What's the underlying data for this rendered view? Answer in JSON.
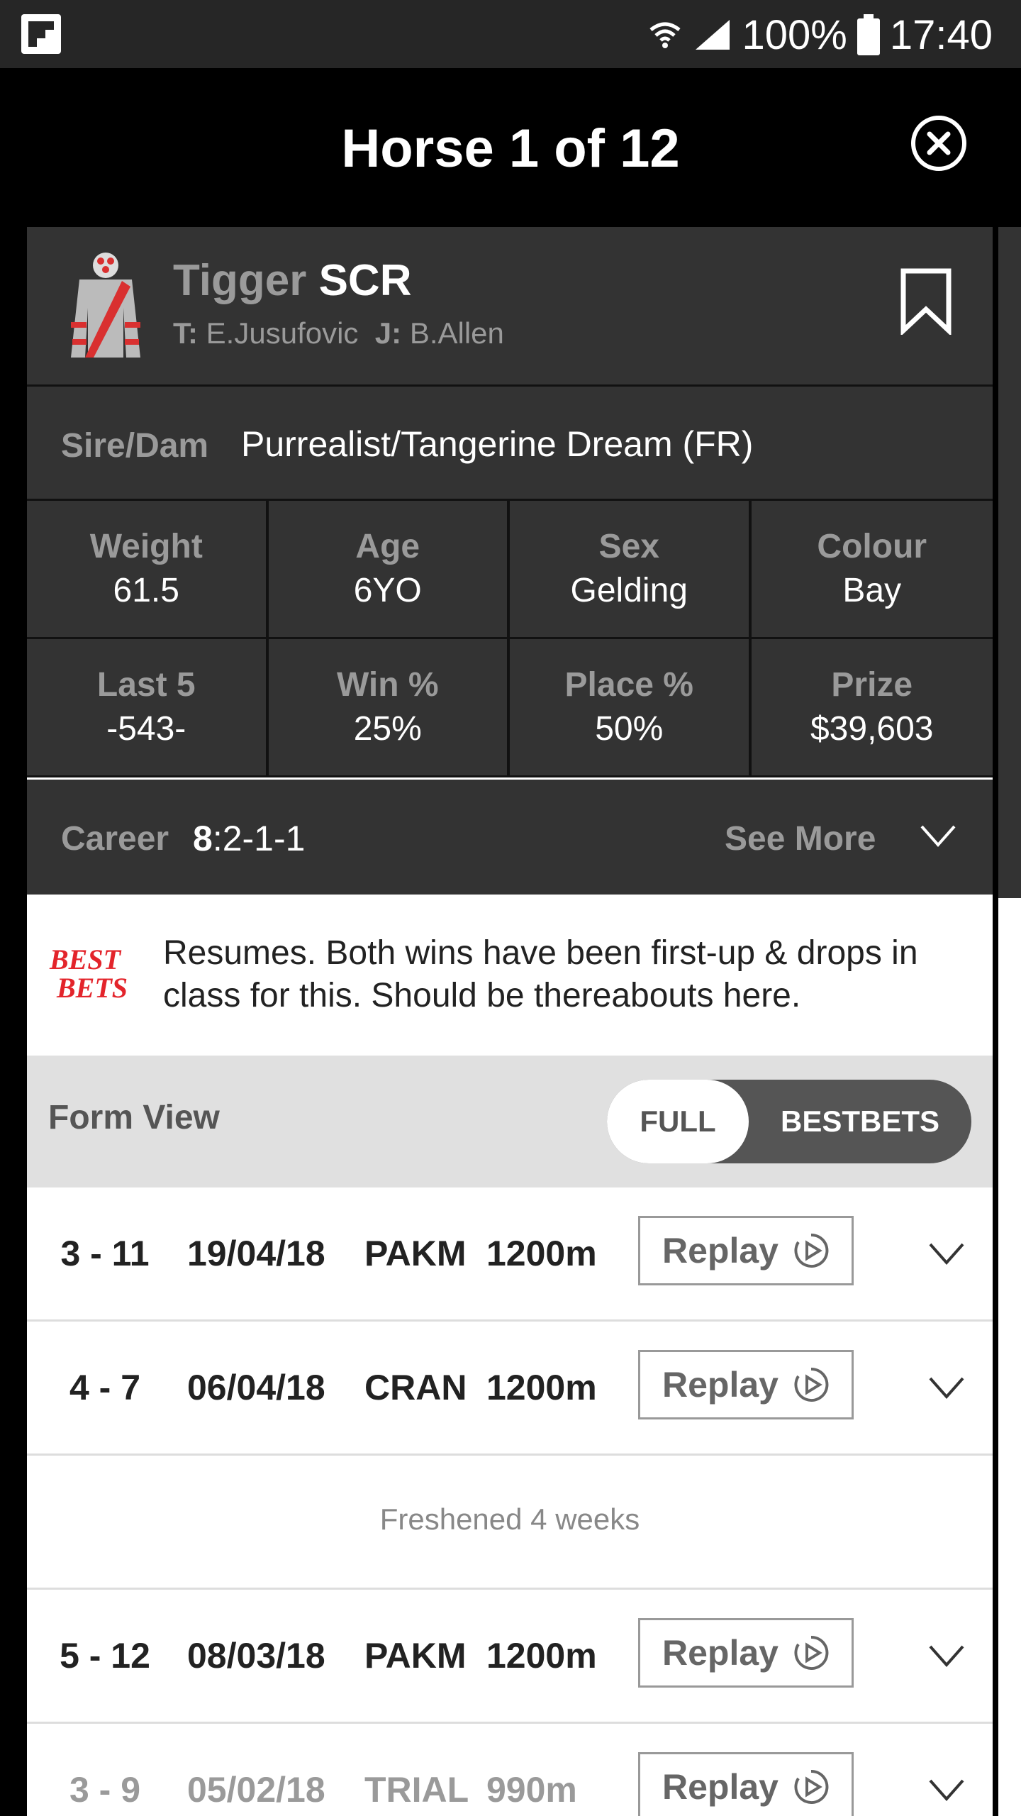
{
  "status_bar": {
    "battery_percent": "100%",
    "time": "17:40",
    "icons": [
      "flipboard-icon",
      "wifi-icon",
      "signal-icon",
      "battery-icon"
    ]
  },
  "header": {
    "title": "Horse 1 of 12",
    "close_icon": "close-circle-icon"
  },
  "horse": {
    "name": "Tigger",
    "status": "SCR",
    "trainer_label": "T:",
    "trainer": "E.Jusufovic",
    "jockey_label": "J:",
    "jockey": "B.Allen",
    "bookmark_icon": "bookmark-icon"
  },
  "sire_dam": {
    "label": "Sire/Dam",
    "value": "Purrealist/Tangerine Dream (FR)"
  },
  "stats": [
    {
      "label": "Weight",
      "value": "61.5"
    },
    {
      "label": "Age",
      "value": "6YO"
    },
    {
      "label": "Sex",
      "value": "Gelding"
    },
    {
      "label": "Colour",
      "value": "Bay"
    },
    {
      "label": "Last 5",
      "value": "-543-"
    },
    {
      "label": "Win %",
      "value": "25%"
    },
    {
      "label": "Place %",
      "value": "50%"
    },
    {
      "label": "Prize",
      "value": "$39,603"
    }
  ],
  "career": {
    "label": "Career",
    "starts": "8",
    "record": ":2-1-1",
    "see_more": "See More"
  },
  "best_bets": {
    "logo_line1": "BEST",
    "logo_line2": "BETS",
    "comment": "Resumes. Both wins have been first-up & drops in class for this. Should be thereabouts here."
  },
  "form_view": {
    "label": "Form View",
    "toggle_full": "FULL",
    "toggle_bestbets": "BESTBETS",
    "selected": "FULL"
  },
  "form_rows": [
    {
      "pos": "3 - 11",
      "date": "19/04/18",
      "track": "PAKM",
      "dist": "1200m",
      "replay": "Replay"
    },
    {
      "pos": "4 - 7",
      "date": "06/04/18",
      "track": "CRAN",
      "dist": "1200m",
      "replay": "Replay"
    },
    {
      "note": "Freshened 4 weeks"
    },
    {
      "pos": "5 - 12",
      "date": "08/03/18",
      "track": "PAKM",
      "dist": "1200m",
      "replay": "Replay"
    },
    {
      "pos": "3 - 9",
      "date": "05/02/18",
      "track": "TRIAL",
      "dist": "990m",
      "replay": "Replay"
    }
  ],
  "colors": {
    "dark_bg": "#333333",
    "header_bg": "#000000",
    "muted_text": "#9a9a9a",
    "best_bets_red": "#e3242b",
    "toggle_bg": "#555555"
  }
}
